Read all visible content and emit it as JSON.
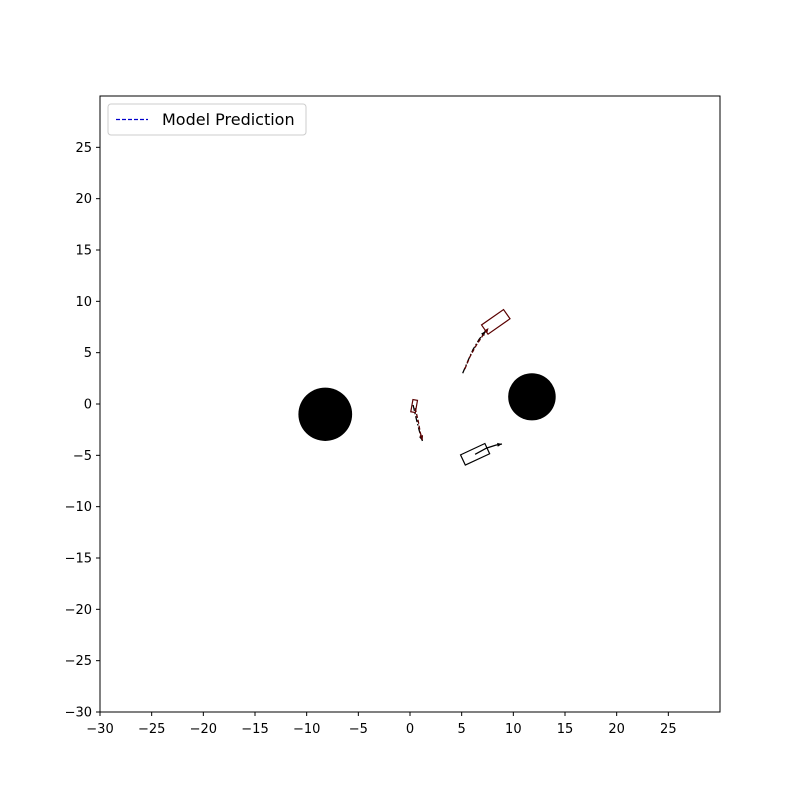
{
  "chart_data": {
    "type": "scatter",
    "title": "",
    "xlabel": "",
    "ylabel": "",
    "xlim": [
      -30,
      30
    ],
    "ylim": [
      -30,
      30
    ],
    "xticks": [
      -30,
      -25,
      -20,
      -15,
      -10,
      -5,
      0,
      5,
      10,
      15,
      20,
      25
    ],
    "yticks": [
      -30,
      -25,
      -20,
      -15,
      -10,
      -5,
      0,
      5,
      10,
      15,
      20,
      25
    ],
    "grid": false,
    "legend": {
      "placement": "top-left",
      "entries": [
        {
          "label": "Model Prediction",
          "color": "#0000cc",
          "style": "dashed"
        }
      ]
    },
    "obstacles": [
      {
        "x": -8.2,
        "y": -1.0,
        "radius": 2.6,
        "color": "#000000"
      },
      {
        "x": 11.8,
        "y": 0.7,
        "radius": 2.3,
        "color": "#000000"
      }
    ],
    "agents": [
      {
        "x": 8.3,
        "y": 8.0,
        "heading_deg": 35,
        "length": 2.6,
        "width": 1.1,
        "color": "#5a0000"
      },
      {
        "x": 6.3,
        "y": -4.9,
        "heading_deg": 25,
        "length": 2.6,
        "width": 1.1,
        "color": "#000000"
      },
      {
        "x": 0.4,
        "y": -0.2,
        "heading_deg": 80,
        "length": 1.2,
        "width": 0.45,
        "color": "#5a0000"
      }
    ],
    "trajectories": [
      {
        "color": "#000000",
        "style": "dashdot",
        "points": [
          [
            5.1,
            3.0
          ],
          [
            5.6,
            4.2
          ],
          [
            6.1,
            5.3
          ],
          [
            6.7,
            6.3
          ],
          [
            7.3,
            7.1
          ]
        ]
      },
      {
        "color": "#5a0000",
        "style": "dashed",
        "points": [
          [
            5.3,
            3.4
          ],
          [
            5.8,
            4.6
          ],
          [
            6.4,
            5.7
          ],
          [
            7.0,
            6.6
          ],
          [
            7.6,
            7.4
          ]
        ]
      },
      {
        "color": "#000000",
        "style": "solid",
        "points": [
          [
            6.3,
            -4.9
          ],
          [
            7.4,
            -4.3
          ],
          [
            8.3,
            -4.0
          ],
          [
            8.9,
            -3.9
          ]
        ]
      },
      {
        "color": "#000000",
        "style": "dashdot",
        "points": [
          [
            0.3,
            -0.1
          ],
          [
            0.6,
            -1.4
          ],
          [
            0.9,
            -2.6
          ],
          [
            1.2,
            -3.6
          ]
        ]
      },
      {
        "color": "#5a0000",
        "style": "dashed",
        "points": [
          [
            0.5,
            -0.4
          ],
          [
            0.8,
            -1.7
          ],
          [
            1.0,
            -2.8
          ],
          [
            1.2,
            -3.5
          ]
        ]
      }
    ]
  }
}
